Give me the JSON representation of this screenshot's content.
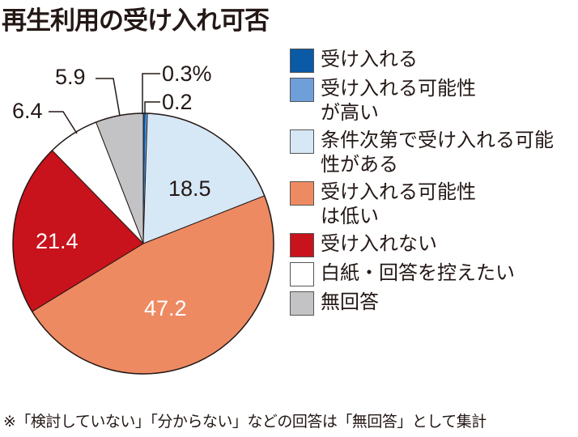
{
  "title": "再生利用の受け入れ可否",
  "note": "※「検討していない」「分からない」などの回答は「無回答」として集計",
  "chart_data": {
    "type": "pie",
    "title": "再生利用の受け入れ可否",
    "unit": "%",
    "slices": [
      {
        "label": "受け入れる",
        "value": 0.3,
        "display": "0.3%",
        "color": "#0a5aa5"
      },
      {
        "label": "受け入れる可能性が高い",
        "value": 0.2,
        "display": "0.2",
        "color": "#6f9fd8"
      },
      {
        "label": "条件次第で受け入れる可能性がある",
        "value": 18.5,
        "display": "18.5",
        "color": "#d6e7f6"
      },
      {
        "label": "受け入れる可能性は低い",
        "value": 47.2,
        "display": "47.2",
        "color": "#ee8a62"
      },
      {
        "label": "受け入れない",
        "value": 21.4,
        "display": "21.4",
        "color": "#c8121c"
      },
      {
        "label": "白紙・回答を控えたい",
        "value": 6.4,
        "display": "6.4",
        "color": "#ffffff"
      },
      {
        "label": "無回答",
        "value": 5.9,
        "display": "5.9",
        "color": "#c3c3c5"
      }
    ],
    "legend_position": "right"
  }
}
